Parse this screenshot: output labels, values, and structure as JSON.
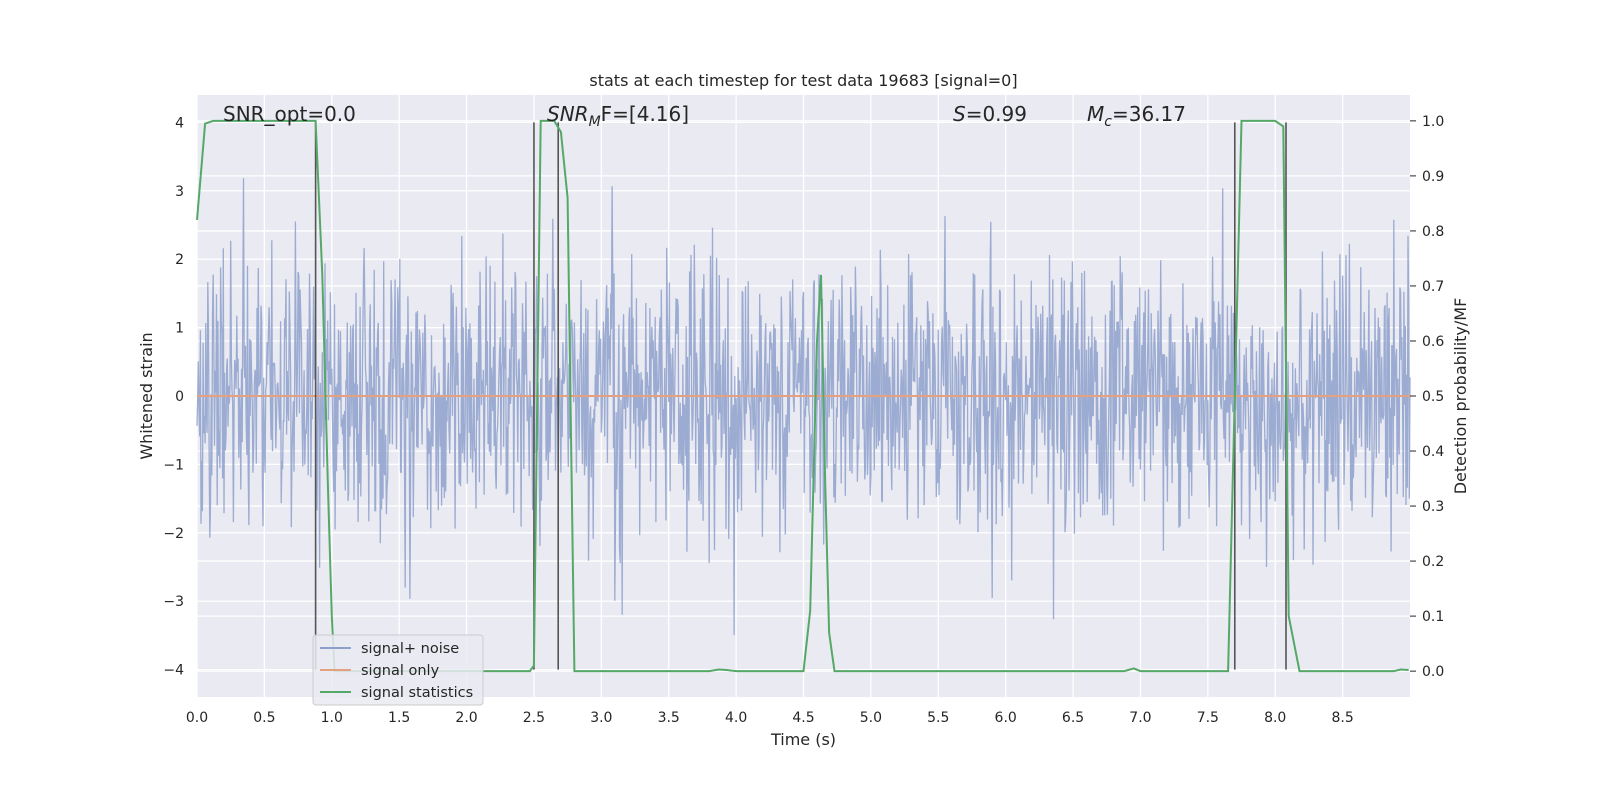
{
  "chart_data": {
    "type": "line",
    "title": "stats at each timestep for test data 19683 [signal=0]",
    "xlabel": "Time (s)",
    "ylabel_left": "Whitened strain",
    "ylabel_right": "Detection probability/MF",
    "xlim": [
      0.0,
      9.0
    ],
    "ylim_left": [
      -4.4,
      4.4
    ],
    "ylim_right": [
      -0.047,
      1.047
    ],
    "x_ticks": [
      0.0,
      0.5,
      1.0,
      1.5,
      2.0,
      2.5,
      3.0,
      3.5,
      4.0,
      4.5,
      5.0,
      5.5,
      6.0,
      6.5,
      7.0,
      7.5,
      8.0,
      8.5
    ],
    "x_tick_labels": [
      "0.0",
      "0.5",
      "1.0",
      "1.5",
      "2.0",
      "2.5",
      "3.0",
      "3.5",
      "4.0",
      "4.5",
      "5.0",
      "5.5",
      "6.0",
      "6.5",
      "7.0",
      "7.5",
      "8.0",
      "8.5"
    ],
    "y_left_ticks": [
      -4,
      -3,
      -2,
      -1,
      0,
      1,
      2,
      3,
      4
    ],
    "y_left_tick_labels": [
      "−4",
      "−3",
      "−2",
      "−1",
      "0",
      "1",
      "2",
      "3",
      "4"
    ],
    "y_right_ticks": [
      0.0,
      0.1,
      0.2,
      0.3,
      0.4,
      0.5,
      0.6,
      0.7,
      0.8,
      0.9,
      1.0
    ],
    "y_right_tick_labels": [
      "0.0",
      "0.1",
      "0.2",
      "0.3",
      "0.4",
      "0.5",
      "0.6",
      "0.7",
      "0.8",
      "0.9",
      "1.0"
    ],
    "grid": true,
    "legend_position": "lower-left",
    "annotations": {
      "snr_opt": "SNR_opt=0.0",
      "snr_mf_var": "SNR",
      "snr_mf_sub": "M",
      "snr_mf_rest": "F=[4.16]",
      "s_var": "S",
      "s_rest": "=0.99",
      "mc_var": "M",
      "mc_sub": "c",
      "mc_rest": "=36.17"
    },
    "series": [
      {
        "name": "signal+ noise",
        "color": "#8da0cb",
        "kind": "noise",
        "sample_rate_hz": 200,
        "std": 1.0
      },
      {
        "name": "signal only",
        "color": "#e5a17f",
        "kind": "flat",
        "value": 0.0
      },
      {
        "name": "signal statistics",
        "color": "#55a868",
        "axis": "right",
        "points": [
          [
            0.0,
            0.82
          ],
          [
            0.06,
            0.995
          ],
          [
            0.12,
            1.0
          ],
          [
            0.3,
            1.0
          ],
          [
            0.5,
            1.0
          ],
          [
            0.7,
            1.0
          ],
          [
            0.88,
            1.0
          ],
          [
            0.93,
            0.72
          ],
          [
            0.97,
            0.35
          ],
          [
            1.0,
            0.1
          ],
          [
            1.02,
            0.0
          ],
          [
            1.5,
            0.0
          ],
          [
            2.0,
            0.0
          ],
          [
            2.47,
            0.0
          ],
          [
            2.5,
            0.01
          ],
          [
            2.55,
            1.0
          ],
          [
            2.65,
            1.0
          ],
          [
            2.7,
            0.98
          ],
          [
            2.75,
            0.86
          ],
          [
            2.8,
            0.0
          ],
          [
            2.85,
            0.0
          ],
          [
            3.0,
            0.0
          ],
          [
            3.8,
            0.0
          ],
          [
            3.87,
            0.003
          ],
          [
            3.93,
            0.002
          ],
          [
            4.0,
            0.0
          ],
          [
            4.5,
            0.0
          ],
          [
            4.55,
            0.11
          ],
          [
            4.6,
            0.6
          ],
          [
            4.63,
            0.72
          ],
          [
            4.66,
            0.35
          ],
          [
            4.69,
            0.07
          ],
          [
            4.73,
            0.0
          ],
          [
            5.0,
            0.0
          ],
          [
            6.0,
            0.0
          ],
          [
            6.88,
            0.0
          ],
          [
            6.95,
            0.005
          ],
          [
            7.0,
            0.0
          ],
          [
            7.65,
            0.0
          ],
          [
            7.7,
            0.5
          ],
          [
            7.75,
            1.0
          ],
          [
            8.0,
            1.0
          ],
          [
            8.06,
            0.99
          ],
          [
            8.1,
            0.1
          ],
          [
            8.18,
            0.0
          ],
          [
            8.5,
            0.0
          ],
          [
            8.88,
            0.0
          ],
          [
            8.93,
            0.003
          ],
          [
            8.99,
            0.002
          ]
        ]
      }
    ],
    "vertical_markers": [
      {
        "x": 0.88,
        "y_left_range": [
          -4,
          4
        ]
      },
      {
        "x": 2.5,
        "y_left_range": [
          -4,
          4
        ]
      },
      {
        "x": 2.68,
        "y_left_range": [
          -4,
          4
        ]
      },
      {
        "x": 7.7,
        "y_left_range": [
          -4,
          4
        ]
      },
      {
        "x": 8.08,
        "y_left_range": [
          -4,
          4
        ]
      }
    ]
  }
}
